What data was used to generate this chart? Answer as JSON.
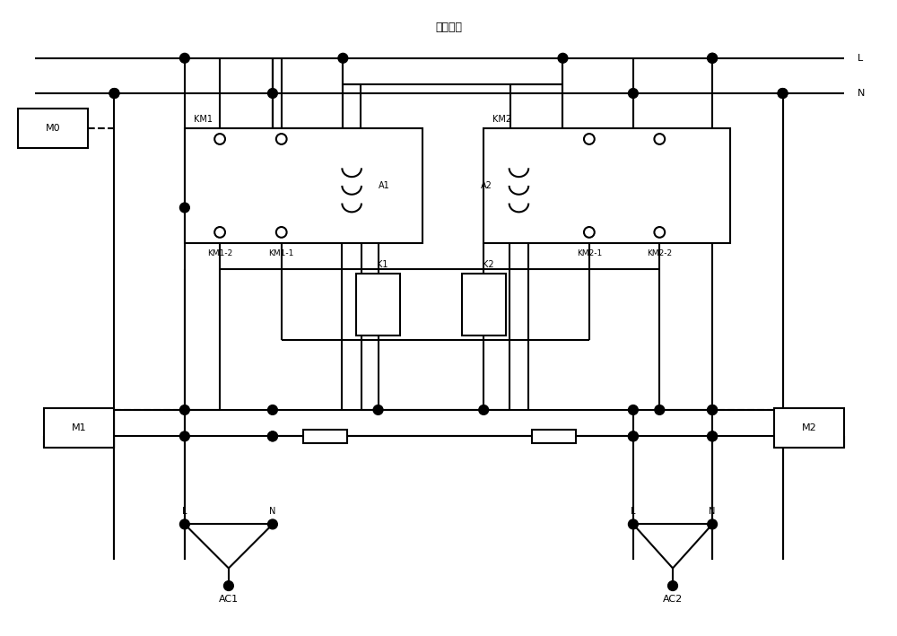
{
  "bg": "#ffffff",
  "lc": "#000000",
  "lw": 1.5,
  "title": "交流母线",
  "L_label": "L",
  "N_label": "N",
  "M0": "M0",
  "M1": "M1",
  "M2": "M2",
  "KM1": "KM1",
  "KM2": "KM2",
  "KM1_1": "KM1-1",
  "KM1_2": "KM1-2",
  "KM2_1": "KM2-1",
  "KM2_2": "KM2-2",
  "A1": "A1",
  "A2": "A2",
  "K1": "K1",
  "K2": "K2",
  "AC1": "AC1",
  "AC2": "AC2"
}
